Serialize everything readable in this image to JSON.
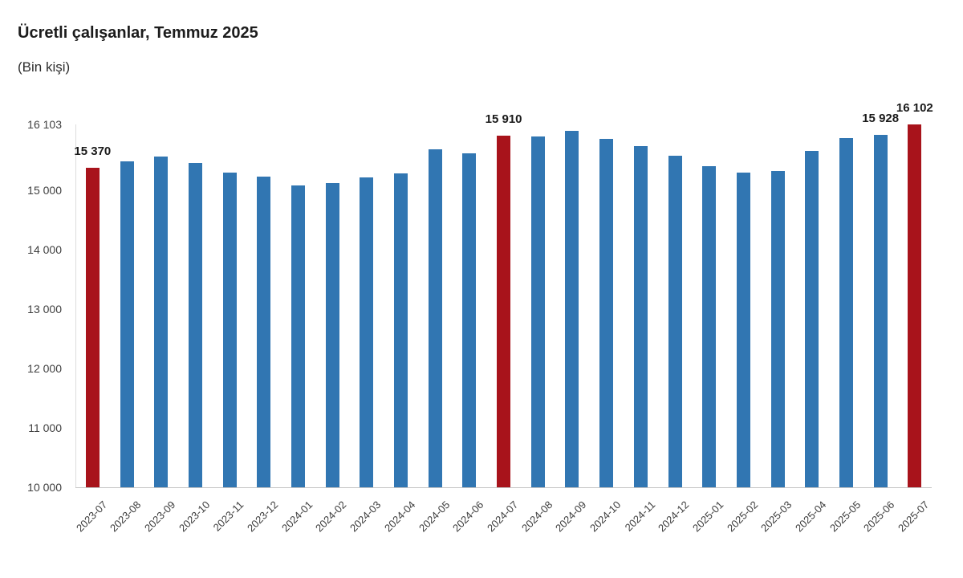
{
  "page": {
    "title": "Ücretli çalışanlar, Temmuz 2025",
    "subtitle": "(Bin kişi)"
  },
  "colors": {
    "bar_default": "#3176B2",
    "bar_highlight": "#A8131B",
    "y_axis_line": "#DCDCDC",
    "x_axis_line": "#C4C4C4",
    "tick_text": "#3F3F3F",
    "data_label_text": "#1A1A1A",
    "title_text": "#1C1C1C"
  },
  "chart_data": {
    "type": "bar",
    "title": "Ücretli çalışanlar, Temmuz 2025",
    "subtitle": "(Bin kişi)",
    "xlabel": "",
    "ylabel": "Bin kişi",
    "ylim": [
      10000,
      16103
    ],
    "grid": false,
    "legend": "none",
    "highlighted_categories": [
      "2023-07",
      "2024-07",
      "2025-07"
    ],
    "categories": [
      "2023-07",
      "2023-08",
      "2023-09",
      "2023-10",
      "2023-11",
      "2023-12",
      "2024-01",
      "2024-02",
      "2024-03",
      "2024-04",
      "2024-05",
      "2024-06",
      "2024-07",
      "2024-08",
      "2024-09",
      "2024-10",
      "2024-11",
      "2024-12",
      "2025-01",
      "2025-02",
      "2025-03",
      "2025-04",
      "2025-05",
      "2025-06",
      "2025-07"
    ],
    "values": [
      15370,
      15480,
      15560,
      15450,
      15300,
      15225,
      15075,
      15120,
      15210,
      15280,
      15690,
      15620,
      15910,
      15900,
      15995,
      15855,
      15745,
      15575,
      15395,
      15290,
      15315,
      15655,
      15880,
      15928,
      16102
    ],
    "data_labels": [
      {
        "category": "2023-07",
        "text": "15 370"
      },
      {
        "category": "2024-07",
        "text": "15 910"
      },
      {
        "category": "2025-06",
        "text": "15 928"
      },
      {
        "category": "2025-07",
        "text": "16 102"
      }
    ],
    "yticks": [
      {
        "value": 16103,
        "label": "16 103"
      },
      {
        "value": 15000,
        "label": "15 000"
      },
      {
        "value": 14000,
        "label": "14 000"
      },
      {
        "value": 13000,
        "label": "13 000"
      },
      {
        "value": 12000,
        "label": "12 000"
      },
      {
        "value": 11000,
        "label": "11 000"
      },
      {
        "value": 10000,
        "label": "10 000"
      }
    ]
  }
}
